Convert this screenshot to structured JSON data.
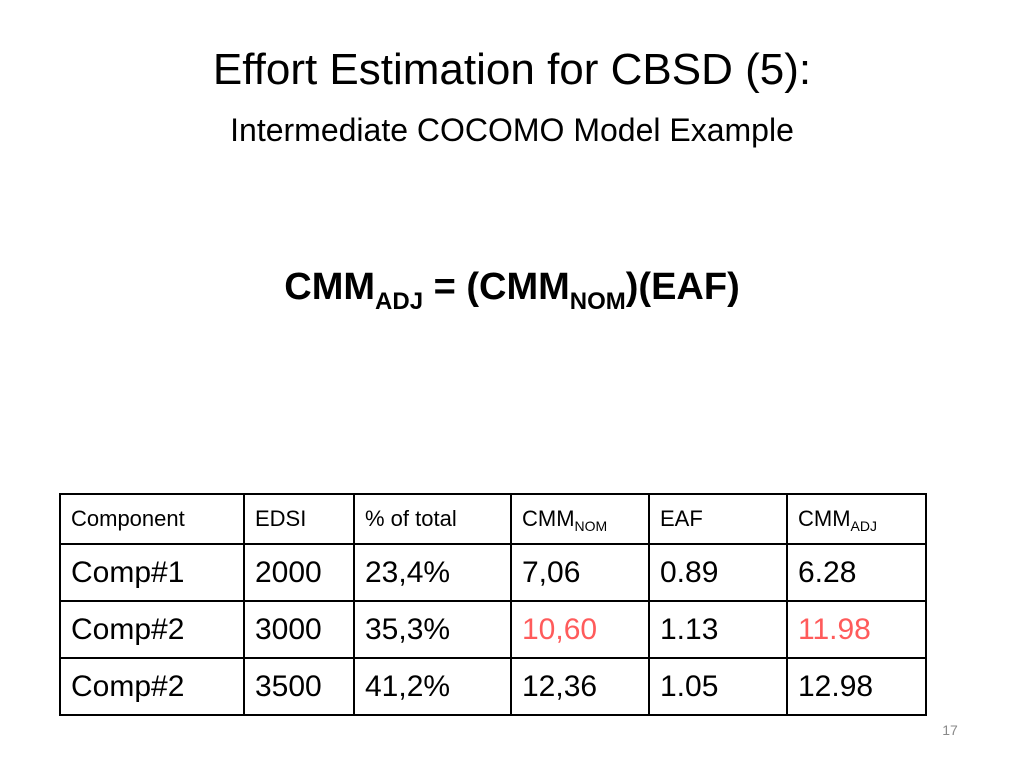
{
  "slide": {
    "title": "Effort Estimation for CBSD (5):",
    "subtitle": "Intermediate COCOMO Model Example",
    "page_number": "17"
  },
  "formula": {
    "lhs_main": "CMM",
    "lhs_sub": "ADJ",
    "equals_open": " = (CMM",
    "rhs_sub": "NOM",
    "rhs_rest": ")(EAF)"
  },
  "table": {
    "headers": [
      {
        "main": "Component",
        "sub": ""
      },
      {
        "main": "EDSI",
        "sub": ""
      },
      {
        "main": "% of total",
        "sub": ""
      },
      {
        "main": "CMM",
        "sub": "NOM"
      },
      {
        "main": "EAF",
        "sub": ""
      },
      {
        "main": "CMM",
        "sub": "ADJ"
      }
    ],
    "rows": [
      [
        "Comp#1",
        "2000",
        "23,4%",
        "7,06",
        "0.89",
        "6.28"
      ],
      [
        "Comp#2",
        "3000",
        "35,3%",
        "10,60",
        "1.13",
        "11.98"
      ],
      [
        "Comp#2",
        "3500",
        "41,2%",
        "12,36",
        "1.05",
        "12.98"
      ]
    ],
    "highlight_color": "#ff5b5b"
  }
}
